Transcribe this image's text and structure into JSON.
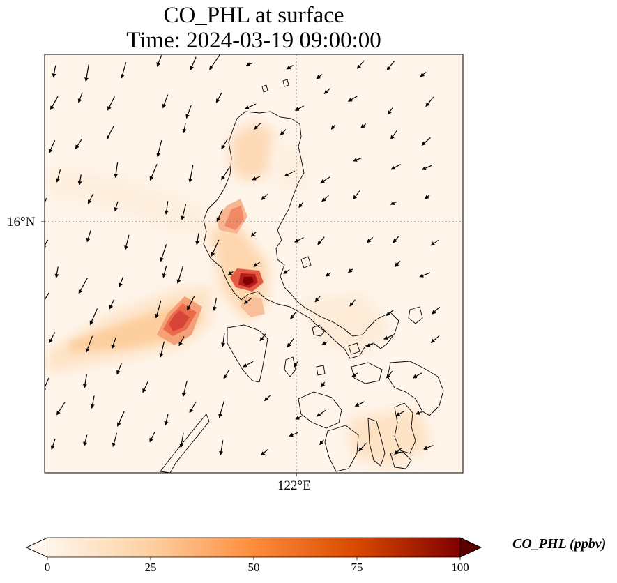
{
  "title": {
    "line1": "CO_PHL at surface",
    "line2": "Time: 2024-03-19 09:00:00"
  },
  "axes": {
    "lat_tick": "16°N",
    "lon_tick": "122°E"
  },
  "colorbar": {
    "label": "CO_PHL (ppbv)",
    "ticks": [
      "0",
      "25",
      "50",
      "75",
      "100"
    ],
    "colormap": [
      "#fff5eb",
      "#fdd0a2",
      "#fd8d3c",
      "#d94801",
      "#7f0000"
    ]
  },
  "chart_data": {
    "type": "heatmap",
    "variable": "CO_PHL",
    "units": "ppbv",
    "level": "surface",
    "time": "2024-03-19 09:00:00",
    "color_range": [
      0,
      100
    ],
    "colorbar_extend": "both",
    "gridlines": {
      "lat": [
        16
      ],
      "lon": [
        122
      ],
      "style": "dotted"
    },
    "features": [
      "coastlines",
      "wind vectors"
    ],
    "hotspots": [
      {
        "lat": 15.4,
        "lon": 121.4,
        "value": 95
      },
      {
        "lat": 14.6,
        "lon": 120.2,
        "value": 65
      },
      {
        "lat": 16.0,
        "lon": 121.0,
        "value": 40
      },
      {
        "lat": 16.9,
        "lon": 120.9,
        "value": 12
      },
      {
        "lat": 13.1,
        "lon": 123.2,
        "value": 12
      }
    ]
  }
}
